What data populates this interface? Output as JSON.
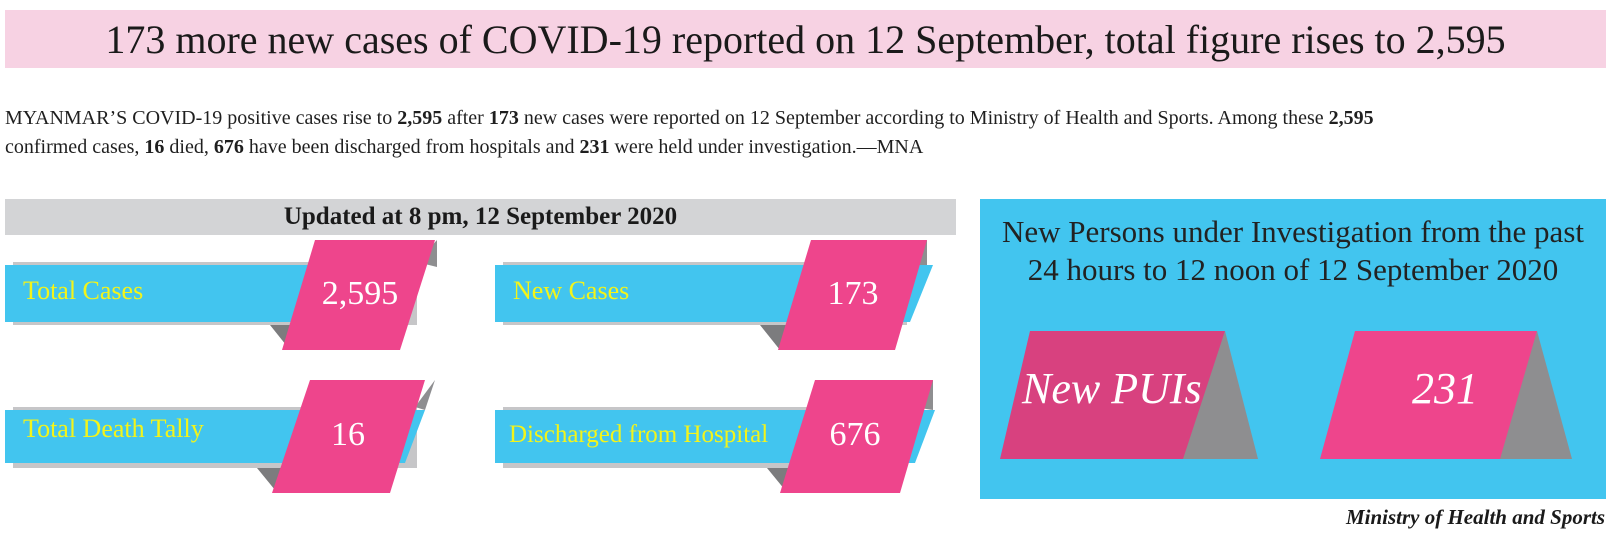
{
  "headline": "173 more new cases of COVID-19 reported on 12 September, total figure rises to 2,595",
  "lead": {
    "p1": "MYANMAR’S COVID-19 positive cases rise to ",
    "n1": "2,595",
    "p2": " after ",
    "n2": "173",
    "p3": " new cases were reported on 12 September according to Ministry of Health and Sports. Among these ",
    "n3": "2,595",
    "p4": " confirmed cases, ",
    "n4": "16",
    "p5": " died, ",
    "n5": "676",
    "p6": " have been discharged from hospitals and ",
    "n6": "231",
    "p7": " were held under investigation.—MNA"
  },
  "updated": "Updated at 8 pm, 12 September 2020",
  "stats": {
    "total_cases": {
      "label": "Total Cases",
      "value": "2,595"
    },
    "new_cases": {
      "label": "New Cases",
      "value": "173"
    },
    "deaths": {
      "label": "Total Death Tally",
      "value": "16"
    },
    "discharged": {
      "label": "Discharged from Hospital",
      "value": "676"
    }
  },
  "pui": {
    "title_line1": "New Persons under Investigation from the past",
    "title_line2": "24 hours to 12 noon of 12 September 2020",
    "label": "New PUIs",
    "value": "231"
  },
  "credit": "Ministry of Health and Sports",
  "colors": {
    "banner": "#f7d2e3",
    "blue": "#42c5ef",
    "pink": "#ee458c",
    "gray": "#8e8e90",
    "label_yellow": "#f3f41a",
    "updated_bar": "#d3d4d6"
  }
}
